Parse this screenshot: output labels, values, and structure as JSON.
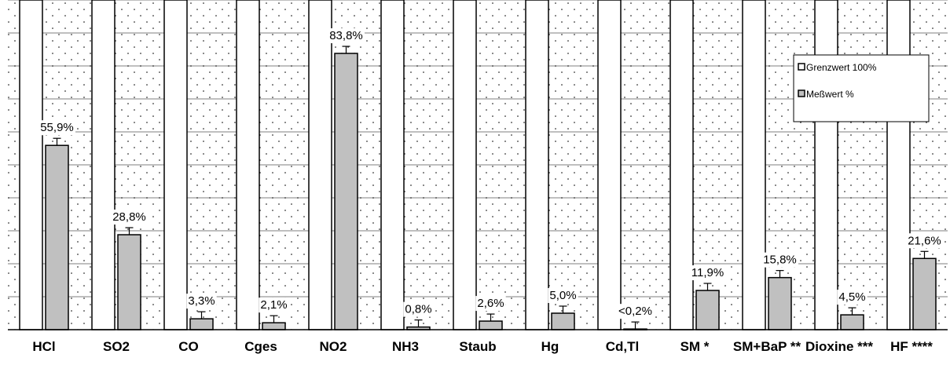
{
  "chart_data": {
    "type": "bar",
    "categories": [
      "HCl",
      "SO2",
      "CO",
      "Cges",
      "NO2",
      "NH3",
      "Staub",
      "Hg",
      "Cd,Tl",
      "SM *",
      "SM+BaP **",
      "Dioxine ***",
      "HF ****"
    ],
    "value_labels": [
      "55,9%",
      "28,8%",
      "3,3%",
      "2,1%",
      "83,8%",
      "0,8%",
      "2,6%",
      "5,0%",
      "<0,2%",
      "11,9%",
      "15,8%",
      "4,5%",
      "21,6%"
    ],
    "series": [
      {
        "name": "Grenzwert 100%",
        "values": [
          100,
          100,
          100,
          100,
          100,
          100,
          100,
          100,
          100,
          100,
          100,
          100,
          100
        ],
        "color": "#ffffff"
      },
      {
        "name": "Meßwert %",
        "values": [
          55.9,
          28.8,
          3.3,
          2.1,
          83.8,
          0.8,
          2.6,
          5.0,
          0.2,
          11.9,
          15.8,
          4.5,
          21.6
        ],
        "color": "#c0c0c0"
      }
    ],
    "ylim": [
      0,
      100
    ],
    "grid": true,
    "legend_position": "top-right",
    "plot_background": "dotted",
    "error_bars": true
  }
}
